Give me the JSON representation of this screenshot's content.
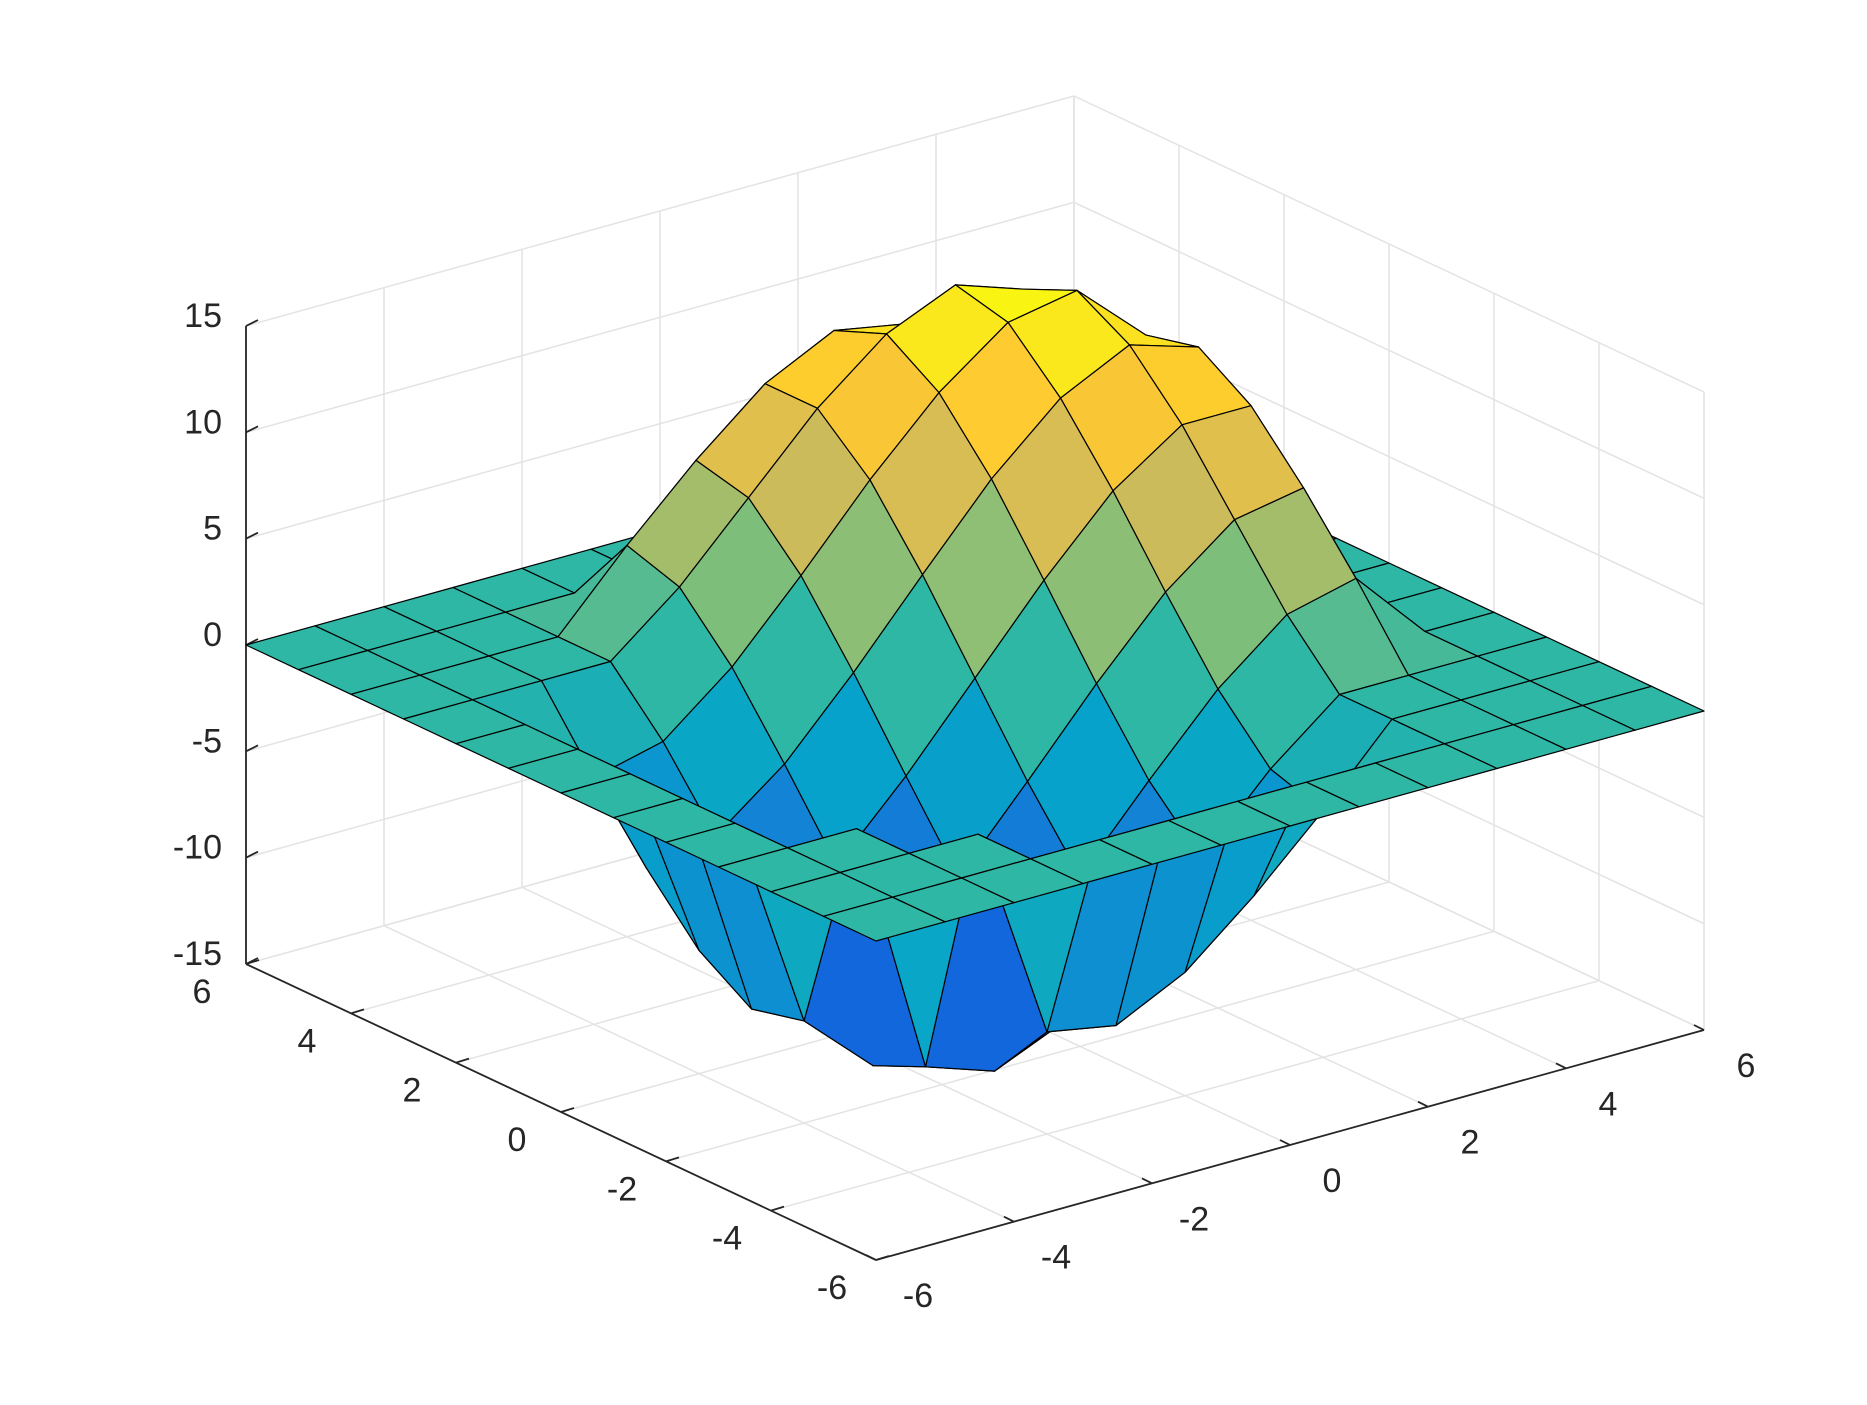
{
  "chart_data": {
    "type": "surface",
    "x": [
      -6,
      -5,
      -4,
      -3,
      -2,
      -1,
      0,
      1,
      2,
      3,
      4,
      5,
      6
    ],
    "y": [
      -6,
      -5,
      -4,
      -3,
      -2,
      -1,
      0,
      1,
      2,
      3,
      4,
      5,
      6
    ],
    "z": [
      [
        0,
        0,
        0,
        0,
        0,
        0,
        0,
        0,
        0,
        0,
        0,
        0,
        0
      ],
      [
        0,
        0,
        0,
        0,
        0,
        0,
        0,
        0,
        0,
        0,
        0,
        0,
        0
      ],
      [
        0,
        0,
        0,
        0,
        -10.2,
        -10.8,
        -9.2,
        -6.5,
        -3.4,
        0,
        0,
        0,
        0
      ],
      [
        0,
        0,
        0,
        -12.1,
        -13.2,
        -11.8,
        -9.2,
        -5.9,
        -2.6,
        0,
        0,
        0,
        0
      ],
      [
        0,
        0,
        -10.2,
        -13.2,
        -12.6,
        -10.2,
        -7.0,
        -3.4,
        0,
        2.6,
        3.4,
        0,
        0
      ],
      [
        0,
        0,
        -10.8,
        -11.8,
        -10.2,
        -7.3,
        -3.7,
        0,
        3.4,
        5.9,
        6.5,
        0,
        0
      ],
      [
        0,
        0,
        -9.2,
        -9.2,
        -7.0,
        -3.7,
        0,
        3.7,
        7.0,
        9.2,
        9.2,
        0,
        0
      ],
      [
        0,
        0,
        -6.5,
        -5.9,
        -3.4,
        0,
        3.7,
        7.3,
        10.2,
        11.8,
        10.8,
        0,
        0
      ],
      [
        0,
        0,
        -3.4,
        -2.6,
        0,
        3.4,
        7.0,
        10.2,
        12.6,
        13.2,
        10.2,
        0,
        0
      ],
      [
        0,
        0,
        0,
        0,
        2.6,
        5.9,
        9.2,
        11.8,
        13.2,
        12.1,
        0,
        0,
        0
      ],
      [
        0,
        0,
        0,
        0,
        3.4,
        6.5,
        9.2,
        10.8,
        10.2,
        0,
        0,
        0,
        0
      ],
      [
        0,
        0,
        0,
        0,
        0,
        0,
        0,
        0,
        0,
        0,
        0,
        0,
        0
      ],
      [
        0,
        0,
        0,
        0,
        0,
        0,
        0,
        0,
        0,
        0,
        0,
        0,
        0
      ]
    ],
    "xlim": [
      -6,
      6
    ],
    "ylim": [
      -6,
      6
    ],
    "zlim": [
      -15,
      15
    ],
    "xticks": [
      -6,
      -4,
      -2,
      0,
      2,
      4,
      6
    ],
    "yticks": [
      -6,
      -4,
      -2,
      0,
      2,
      4,
      6
    ],
    "zticks": [
      -15,
      -10,
      -5,
      0,
      5,
      10,
      15
    ],
    "grid": true,
    "edge_color": "#000000",
    "colormap": [
      "#352a87",
      "#0f5cdd",
      "#1481d6",
      "#06a4ca",
      "#2eb7a4",
      "#87bf77",
      "#d1bb59",
      "#fec832",
      "#f9fb0e"
    ]
  }
}
